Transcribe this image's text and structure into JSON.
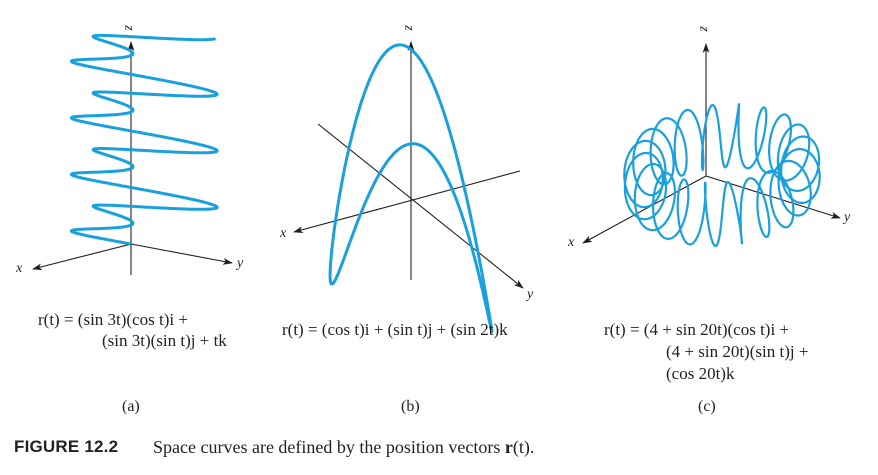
{
  "figure": {
    "number": "FIGURE 12.2",
    "caption": "Space curves are defined by the position vectors r(t).",
    "caption_parts": {
      "before": "Space curves are defined by the position vectors ",
      "bold": "r",
      "after": "(t)."
    }
  },
  "panels": [
    {
      "id": "a",
      "label": "(a)",
      "equation_lines": [
        "r(t) = (sin 3t)(cos t)i +",
        "(sin 3t)(sin t)j + tk"
      ],
      "axes": [
        "x",
        "y",
        "z"
      ],
      "curve_color": "#1aa0dc"
    },
    {
      "id": "b",
      "label": "(b)",
      "equation_lines": [
        "r(t) = (cos t)i + (sin t)j + (sin 2t)k"
      ],
      "axes": [
        "x",
        "y",
        "z"
      ],
      "curve_color": "#1aa0dc"
    },
    {
      "id": "c",
      "label": "(c)",
      "equation_lines": [
        "r(t) = (4 + sin 20t)(cos t)i +",
        "(4 + sin 20t)(sin t)j +",
        "(cos 20t)k"
      ],
      "axes": [
        "x",
        "y",
        "z"
      ],
      "curve_color": "#1aa0dc"
    }
  ]
}
